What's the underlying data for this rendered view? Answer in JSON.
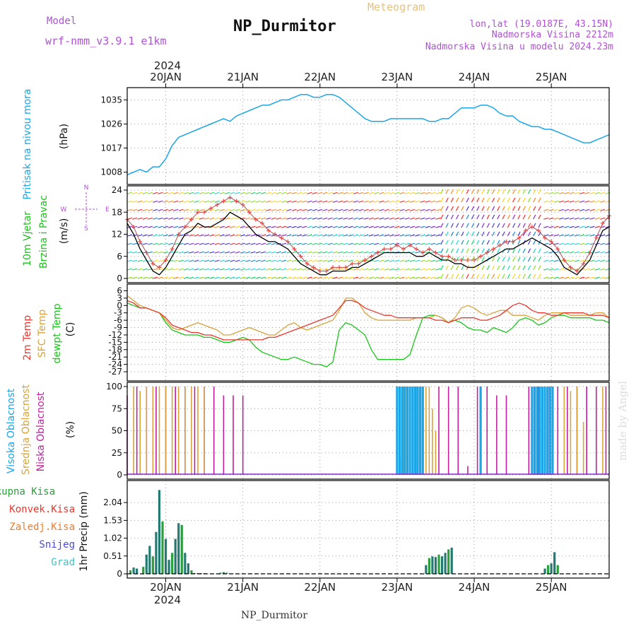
{
  "header": {
    "model_label": "Model",
    "model_name": "wrf-nmm_v3.9.1 e1km",
    "station": "NP_Durmitor",
    "product": "Meteogram",
    "coords": "lon,lat (19.0187E, 43.15N)",
    "elevation": "Nadmorska Visina 2212m",
    "model_elevation": "Nadmorska Visina u modelu 2024.23m"
  },
  "footer": {
    "station": "NP_Durmitor",
    "credit": "made by Angel"
  },
  "time_axis": {
    "year": "2024",
    "ticks": [
      {
        "label": "20JAN",
        "t": 12
      },
      {
        "label": "21JAN",
        "t": 36
      },
      {
        "label": "22JAN",
        "t": 60
      },
      {
        "label": "23JAN",
        "t": 84
      },
      {
        "label": "24JAN",
        "t": 108
      },
      {
        "label": "25JAN",
        "t": 132
      }
    ],
    "t_range": [
      0,
      150
    ],
    "unit": "hours from 19 Jan 12 UTC"
  },
  "colors": {
    "pressure": "#1aa6e8",
    "temp2m": "#e8372d",
    "sfc_temp": "#d9a23a",
    "dewpt": "#19c519",
    "high_cloud": "#1aa6e8",
    "mid_cloud": "#d9a23a",
    "low_cloud": "#c21fa0",
    "total_precip": "#2d9e3c",
    "conv_precip": "#e8372d",
    "freezing_precip": "#f07b2b",
    "snow": "#4a4ad8",
    "graupel": "#35c7c7",
    "precip_bar": "#237a72",
    "wind_speed_line": "#000000",
    "wind_gust": "#e84a4a",
    "title_purple": "#b24fd8",
    "title_gold": "#e8c27a",
    "grid": "#9a9a9a"
  },
  "panels": {
    "pressure": {
      "label_lines": [
        "Pritisak na nivou mora",
        "(hPa)"
      ],
      "yticks": [
        "1008",
        "1017",
        "1026",
        "1035"
      ],
      "ylim": [
        1005,
        1038
      ]
    },
    "wind": {
      "label_lines": [
        "10m Vjetar",
        "Brzina i Pravac",
        "(m/s)"
      ],
      "compass": [
        "N",
        "E",
        "S",
        "W"
      ],
      "yticks": [
        "0",
        "6",
        "12",
        "18",
        "24"
      ],
      "ylim": [
        0,
        24
      ]
    },
    "temperature": {
      "label_lines": [
        "2m Temp",
        "SFC Temp",
        "dewpt Temp",
        "(C)"
      ],
      "yticks": [
        "-27",
        "-24",
        "-21",
        "-18",
        "-15",
        "-12",
        "-9",
        "-6",
        "-3",
        "0",
        "3",
        "6"
      ],
      "ylim": [
        -29,
        7
      ]
    },
    "cloud": {
      "label_lines": [
        "Visoka Oblacnost",
        "Srednja Oblacnost",
        "Niska Oblacnost",
        "(%)"
      ],
      "yticks": [
        "0",
        "25",
        "50",
        "75",
        "100"
      ],
      "ylim": [
        0,
        100
      ]
    },
    "precip": {
      "legend": [
        "Ukupna Kisa",
        "Konvek.Kisa",
        "Zaledj.Kisa",
        "Snijeg",
        "Grad"
      ],
      "label_lines": [
        "1hr Precip (mm)"
      ],
      "yticks": [
        "0",
        "0.51",
        "1.02",
        "1.53",
        "2.04"
      ],
      "ylim": [
        0,
        2.55
      ]
    }
  },
  "chart_data": {
    "type": "line",
    "title": "NP_Durmitor",
    "x_unit": "hours from 19 Jan 12 UTC",
    "pressure": {
      "t": [
        0,
        2,
        4,
        6,
        8,
        10,
        12,
        14,
        16,
        18,
        20,
        22,
        24,
        26,
        28,
        30,
        32,
        34,
        36,
        38,
        40,
        42,
        44,
        46,
        48,
        50,
        52,
        54,
        56,
        58,
        60,
        62,
        64,
        66,
        68,
        70,
        72,
        74,
        76,
        78,
        80,
        82,
        84,
        86,
        88,
        90,
        92,
        94,
        96,
        98,
        100,
        102,
        104,
        106,
        108,
        110,
        112,
        114,
        116,
        118,
        120,
        122,
        124,
        126,
        128,
        130,
        132,
        134,
        136,
        138,
        140,
        142,
        144,
        146,
        148,
        150
      ],
      "values": [
        1007,
        1008,
        1009,
        1008,
        1010,
        1010,
        1013,
        1018,
        1021,
        1022,
        1023,
        1024,
        1025,
        1026,
        1027,
        1028,
        1027,
        1029,
        1030,
        1031,
        1032,
        1033,
        1033,
        1034,
        1035,
        1035,
        1036,
        1037,
        1037,
        1036,
        1036,
        1037,
        1037,
        1036,
        1034,
        1032,
        1030,
        1028,
        1027,
        1027,
        1027,
        1028,
        1028,
        1028,
        1028,
        1028,
        1028,
        1027,
        1027,
        1028,
        1028,
        1030,
        1032,
        1032,
        1032,
        1033,
        1033,
        1032,
        1030,
        1029,
        1029,
        1027,
        1026,
        1025,
        1025,
        1024,
        1024,
        1023,
        1022,
        1021,
        1020,
        1019,
        1019,
        1020,
        1021,
        1022
      ]
    },
    "wind": {
      "t": [
        0,
        2,
        4,
        6,
        8,
        10,
        12,
        14,
        16,
        18,
        20,
        22,
        24,
        26,
        28,
        30,
        32,
        34,
        36,
        38,
        40,
        42,
        44,
        46,
        48,
        50,
        52,
        54,
        56,
        58,
        60,
        62,
        64,
        66,
        68,
        70,
        72,
        74,
        76,
        78,
        80,
        82,
        84,
        86,
        88,
        90,
        92,
        94,
        96,
        98,
        100,
        102,
        104,
        106,
        108,
        110,
        112,
        114,
        116,
        118,
        120,
        122,
        124,
        126,
        128,
        130,
        132,
        134,
        136,
        138,
        140,
        142,
        144,
        146,
        148,
        150
      ],
      "speed": [
        15,
        12,
        8,
        5,
        2,
        1,
        3,
        6,
        9,
        12,
        13,
        15,
        14,
        14,
        15,
        16,
        18,
        17,
        16,
        14,
        12,
        11,
        10,
        10,
        9,
        8,
        6,
        4,
        3,
        2,
        1,
        1,
        2,
        2,
        2,
        3,
        3,
        4,
        5,
        6,
        7,
        7,
        7,
        7,
        7,
        6,
        6,
        7,
        6,
        5,
        5,
        4,
        4,
        3,
        3,
        4,
        5,
        6,
        7,
        8,
        8,
        9,
        10,
        11,
        10,
        9,
        8,
        6,
        3,
        2,
        1,
        3,
        5,
        9,
        13,
        14
      ],
      "gust": [
        16,
        14,
        10,
        7,
        4,
        3,
        5,
        8,
        12,
        14,
        16,
        18,
        18,
        19,
        20,
        21,
        22,
        21,
        20,
        18,
        16,
        15,
        13,
        12,
        11,
        10,
        8,
        6,
        4,
        3,
        2,
        2,
        3,
        3,
        3,
        4,
        4,
        5,
        6,
        7,
        8,
        8,
        9,
        8,
        9,
        8,
        7,
        8,
        7,
        6,
        6,
        5,
        5,
        5,
        5,
        6,
        7,
        8,
        9,
        10,
        10,
        11,
        13,
        14,
        13,
        11,
        10,
        8,
        5,
        3,
        2,
        4,
        7,
        11,
        15,
        17
      ]
    },
    "temperature": {
      "t": [
        0,
        2,
        4,
        6,
        8,
        10,
        12,
        14,
        16,
        18,
        20,
        22,
        24,
        26,
        28,
        30,
        32,
        34,
        36,
        38,
        40,
        42,
        44,
        46,
        48,
        50,
        52,
        54,
        56,
        58,
        60,
        62,
        64,
        66,
        68,
        70,
        72,
        74,
        76,
        78,
        80,
        82,
        84,
        86,
        88,
        90,
        92,
        94,
        96,
        98,
        100,
        102,
        104,
        106,
        108,
        110,
        112,
        114,
        116,
        118,
        120,
        122,
        124,
        126,
        128,
        130,
        132,
        134,
        136,
        138,
        140,
        142,
        144,
        146,
        148,
        150
      ],
      "temp2m": [
        2,
        1,
        -1,
        -1,
        -2,
        -3,
        -5,
        -8,
        -9,
        -10,
        -11,
        -11,
        -12,
        -12,
        -13,
        -14,
        -14,
        -14,
        -14,
        -14,
        -14,
        -14,
        -13,
        -13,
        -12,
        -11,
        -10,
        -9,
        -8,
        -7,
        -6,
        -5,
        -4,
        -1,
        2,
        2,
        1,
        -1,
        -2,
        -3,
        -4,
        -4,
        -5,
        -5,
        -5,
        -5,
        -5,
        -5,
        -6,
        -6,
        -7,
        -6,
        -5,
        -5,
        -5,
        -6,
        -6,
        -5,
        -4,
        -2,
        0,
        1,
        0,
        -2,
        -3,
        -3,
        -4,
        -4,
        -3,
        -3,
        -3,
        -3,
        -4,
        -4,
        -4,
        -5
      ],
      "sfc_temp": [
        4,
        2,
        0,
        -1,
        -2,
        -3,
        -6,
        -9,
        -10,
        -9,
        -8,
        -7,
        -8,
        -9,
        -10,
        -12,
        -12,
        -11,
        -10,
        -9,
        -10,
        -11,
        -12,
        -12,
        -10,
        -8,
        -7,
        -9,
        -10,
        -9,
        -8,
        -7,
        -6,
        -2,
        3,
        3,
        1,
        -3,
        -5,
        -6,
        -6,
        -6,
        -6,
        -6,
        -6,
        -5,
        -5,
        -5,
        -4,
        -5,
        -7,
        -5,
        -1,
        0,
        -1,
        -3,
        -4,
        -3,
        -2,
        -2,
        -4,
        -4,
        -4,
        -5,
        -6,
        -4,
        -3,
        -3,
        -3,
        -4,
        -4,
        -4,
        -4,
        -3,
        -3,
        -5
      ],
      "dewpt": [
        1,
        0,
        -1,
        -1,
        -2,
        -3,
        -7,
        -10,
        -11,
        -12,
        -12,
        -12,
        -13,
        -13,
        -14,
        -15,
        -15,
        -14,
        -13,
        -14,
        -17,
        -19,
        -20,
        -21,
        -22,
        -22,
        -21,
        -22,
        -23,
        -24,
        -24,
        -25,
        -23,
        -10,
        -7,
        -8,
        -10,
        -12,
        -18,
        -22,
        -22,
        -22,
        -22,
        -22,
        -20,
        -12,
        -5,
        -4,
        -4,
        -5,
        -7,
        -6,
        -7,
        -9,
        -10,
        -10,
        -11,
        -9,
        -10,
        -11,
        -9,
        -6,
        -5,
        -6,
        -8,
        -7,
        -5,
        -4,
        -4,
        -5,
        -5,
        -5,
        -5,
        -6,
        -6,
        -7
      ]
    },
    "cloud": {
      "high_t": [
        84,
        84.8,
        85.6,
        86.4,
        87.2,
        88,
        88.8,
        89.6,
        90.4,
        91.2,
        92,
        110,
        126,
        126.8,
        127.6,
        128.4,
        129.2,
        130,
        130.8,
        131.6,
        132.4
      ],
      "high_v": [
        100,
        100,
        100,
        100,
        100,
        100,
        100,
        100,
        100,
        100,
        100,
        100,
        100,
        100,
        100,
        100,
        100,
        100,
        100,
        100,
        100
      ],
      "mid_t": [
        2,
        4,
        6,
        8,
        10,
        12,
        14,
        16,
        18,
        20,
        22,
        24,
        85,
        86,
        87,
        88,
        89,
        90,
        91,
        92,
        93,
        94,
        95,
        96,
        136,
        138,
        140,
        142,
        148
      ],
      "mid_v": [
        100,
        95,
        100,
        100,
        100,
        100,
        100,
        100,
        100,
        100,
        100,
        100,
        20,
        100,
        100,
        100,
        100,
        100,
        100,
        100,
        100,
        100,
        75,
        50,
        100,
        95,
        100,
        60,
        100
      ],
      "low_t": [
        0,
        3,
        6,
        9,
        12,
        15,
        18,
        21,
        24,
        27,
        30,
        33,
        36,
        97,
        100,
        103,
        106,
        109,
        112,
        115,
        118,
        125,
        128,
        131,
        134,
        137,
        140,
        143,
        146,
        149
      ],
      "low_v": [
        90,
        100,
        100,
        100,
        100,
        100,
        100,
        100,
        100,
        100,
        90,
        90,
        90,
        100,
        100,
        100,
        10,
        100,
        100,
        90,
        90,
        100,
        100,
        100,
        100,
        100,
        100,
        100,
        100,
        100
      ]
    },
    "precip": {
      "t": [
        1,
        2,
        3,
        5,
        6,
        7,
        8,
        9,
        10,
        11,
        12,
        13,
        14,
        15,
        16,
        17,
        18,
        19,
        20,
        21,
        22,
        23,
        24,
        29,
        30,
        31,
        93,
        94,
        95,
        96,
        97,
        98,
        99,
        100,
        101,
        130,
        131,
        132,
        133,
        134
      ],
      "values": [
        0.1,
        0.18,
        0.15,
        0.2,
        0.55,
        0.8,
        0.5,
        1.2,
        2.4,
        1.5,
        1.0,
        0.4,
        0.6,
        1.0,
        1.45,
        1.4,
        0.6,
        0.3,
        0.1,
        0.02,
        0.02,
        0.02,
        0.02,
        0.03,
        0.05,
        0.03,
        0.25,
        0.45,
        0.5,
        0.48,
        0.55,
        0.5,
        0.6,
        0.7,
        0.75,
        0.15,
        0.25,
        0.3,
        0.62,
        0.25
      ]
    }
  }
}
